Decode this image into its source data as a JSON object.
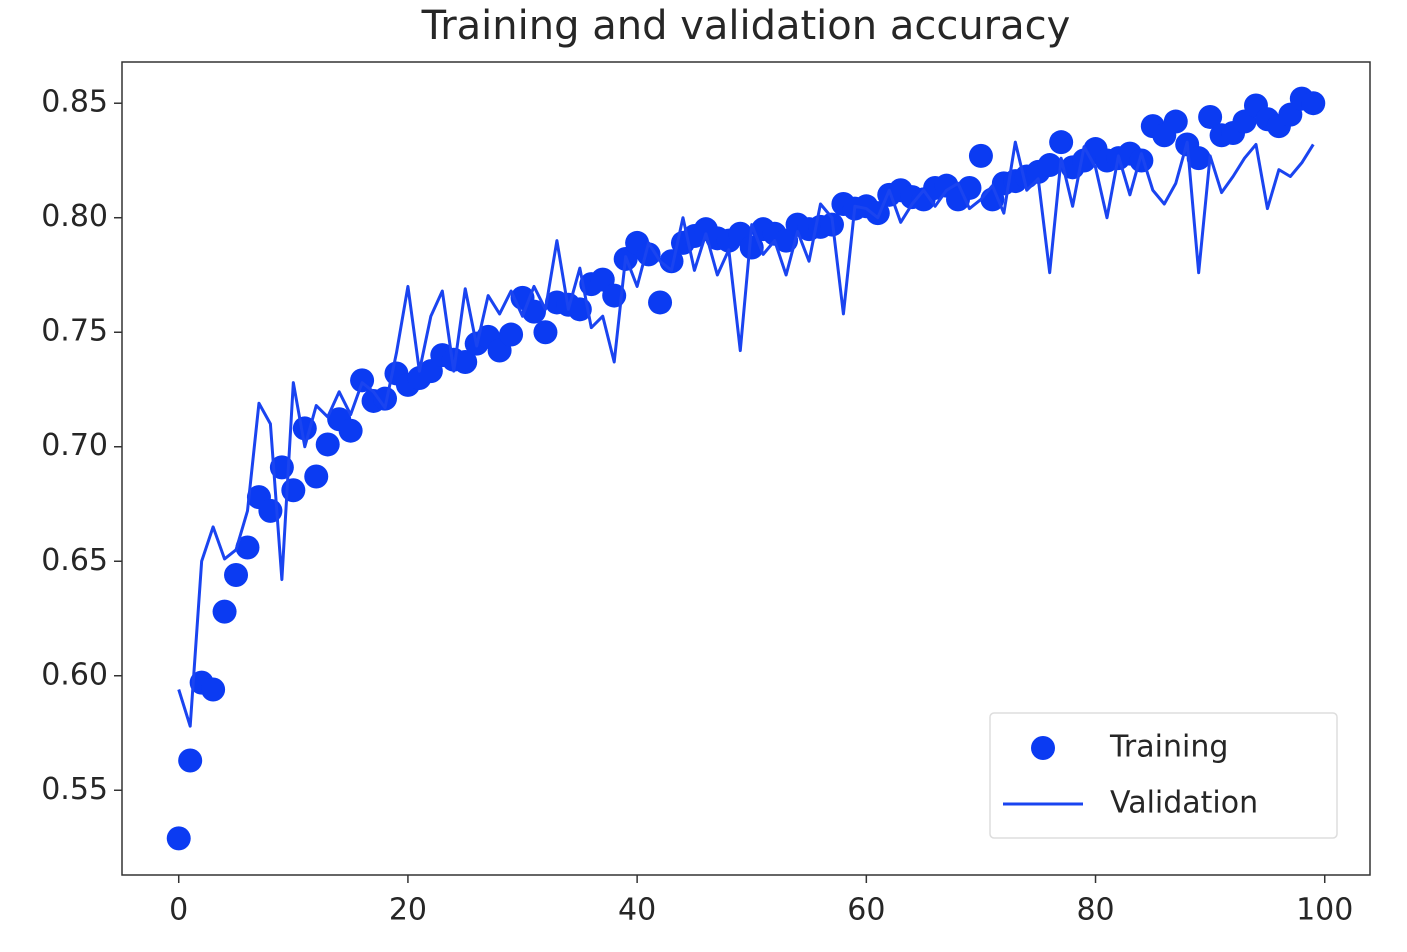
{
  "chart_data": {
    "type": "line",
    "title": "Training and validation accuracy",
    "x": [
      0,
      1,
      2,
      3,
      4,
      5,
      6,
      7,
      8,
      9,
      10,
      11,
      12,
      13,
      14,
      15,
      16,
      17,
      18,
      19,
      20,
      21,
      22,
      23,
      24,
      25,
      26,
      27,
      28,
      29,
      30,
      31,
      32,
      33,
      34,
      35,
      36,
      37,
      38,
      39,
      40,
      41,
      42,
      43,
      44,
      45,
      46,
      47,
      48,
      49,
      50,
      51,
      52,
      53,
      54,
      55,
      56,
      57,
      58,
      59,
      60,
      61,
      62,
      63,
      64,
      65,
      66,
      67,
      68,
      69,
      70,
      71,
      72,
      73,
      74,
      75,
      76,
      77,
      78,
      79,
      80,
      81,
      82,
      83,
      84,
      85,
      86,
      87,
      88,
      89,
      90,
      91,
      92,
      93,
      94,
      95,
      96,
      97,
      98,
      99
    ],
    "series": [
      {
        "name": "Training",
        "color": "#0b3bf2",
        "marker": "dot",
        "values": [
          0.529,
          0.563,
          0.597,
          0.594,
          0.628,
          0.644,
          0.656,
          0.678,
          0.672,
          0.691,
          0.681,
          0.708,
          0.687,
          0.701,
          0.712,
          0.707,
          0.729,
          0.72,
          0.721,
          0.732,
          0.727,
          0.73,
          0.733,
          0.74,
          0.738,
          0.737,
          0.745,
          0.748,
          0.742,
          0.749,
          0.765,
          0.759,
          0.75,
          0.763,
          0.762,
          0.76,
          0.771,
          0.773,
          0.766,
          0.782,
          0.789,
          0.784,
          0.763,
          0.781,
          0.789,
          0.792,
          0.795,
          0.791,
          0.79,
          0.793,
          0.787,
          0.795,
          0.793,
          0.79,
          0.797,
          0.795,
          0.796,
          0.797,
          0.806,
          0.804,
          0.805,
          0.802,
          0.81,
          0.812,
          0.809,
          0.808,
          0.813,
          0.814,
          0.808,
          0.813,
          0.827,
          0.808,
          0.815,
          0.816,
          0.818,
          0.82,
          0.823,
          0.833,
          0.822,
          0.825,
          0.83,
          0.825,
          0.826,
          0.828,
          0.825,
          0.84,
          0.836,
          0.842,
          0.832,
          0.826,
          0.844,
          0.836,
          0.837,
          0.842,
          0.849,
          0.843,
          0.84,
          0.845,
          0.852,
          0.85
        ]
      },
      {
        "name": "Validation",
        "color": "#1a44f0",
        "marker": "line",
        "values": [
          0.594,
          0.578,
          0.65,
          0.665,
          0.651,
          0.655,
          0.672,
          0.719,
          0.71,
          0.642,
          0.728,
          0.7,
          0.718,
          0.713,
          0.724,
          0.714,
          0.728,
          0.724,
          0.717,
          0.741,
          0.77,
          0.733,
          0.757,
          0.768,
          0.733,
          0.769,
          0.744,
          0.766,
          0.758,
          0.768,
          0.757,
          0.77,
          0.76,
          0.79,
          0.76,
          0.778,
          0.752,
          0.757,
          0.737,
          0.783,
          0.77,
          0.789,
          0.781,
          0.777,
          0.8,
          0.777,
          0.793,
          0.775,
          0.786,
          0.742,
          0.797,
          0.784,
          0.79,
          0.775,
          0.794,
          0.781,
          0.806,
          0.8,
          0.758,
          0.805,
          0.804,
          0.8,
          0.812,
          0.798,
          0.806,
          0.812,
          0.805,
          0.812,
          0.815,
          0.804,
          0.808,
          0.814,
          0.802,
          0.833,
          0.812,
          0.817,
          0.776,
          0.826,
          0.805,
          0.831,
          0.822,
          0.8,
          0.827,
          0.81,
          0.828,
          0.812,
          0.806,
          0.815,
          0.833,
          0.776,
          0.827,
          0.811,
          0.818,
          0.826,
          0.832,
          0.804,
          0.821,
          0.818,
          0.824,
          0.832
        ]
      }
    ],
    "xlim": [
      -4.95,
      103.95
    ],
    "xticks": [
      0,
      20,
      40,
      60,
      80,
      100
    ],
    "ylim": [
      0.513,
      0.868
    ],
    "yticks": [
      0.55,
      {
        "value": 0.6,
        "label": "0.60"
      },
      0.65,
      {
        "value": 0.7,
        "label": "0.70"
      },
      0.75,
      {
        "value": 0.8,
        "label": "0.80"
      },
      0.85
    ],
    "legend": "lower right"
  }
}
